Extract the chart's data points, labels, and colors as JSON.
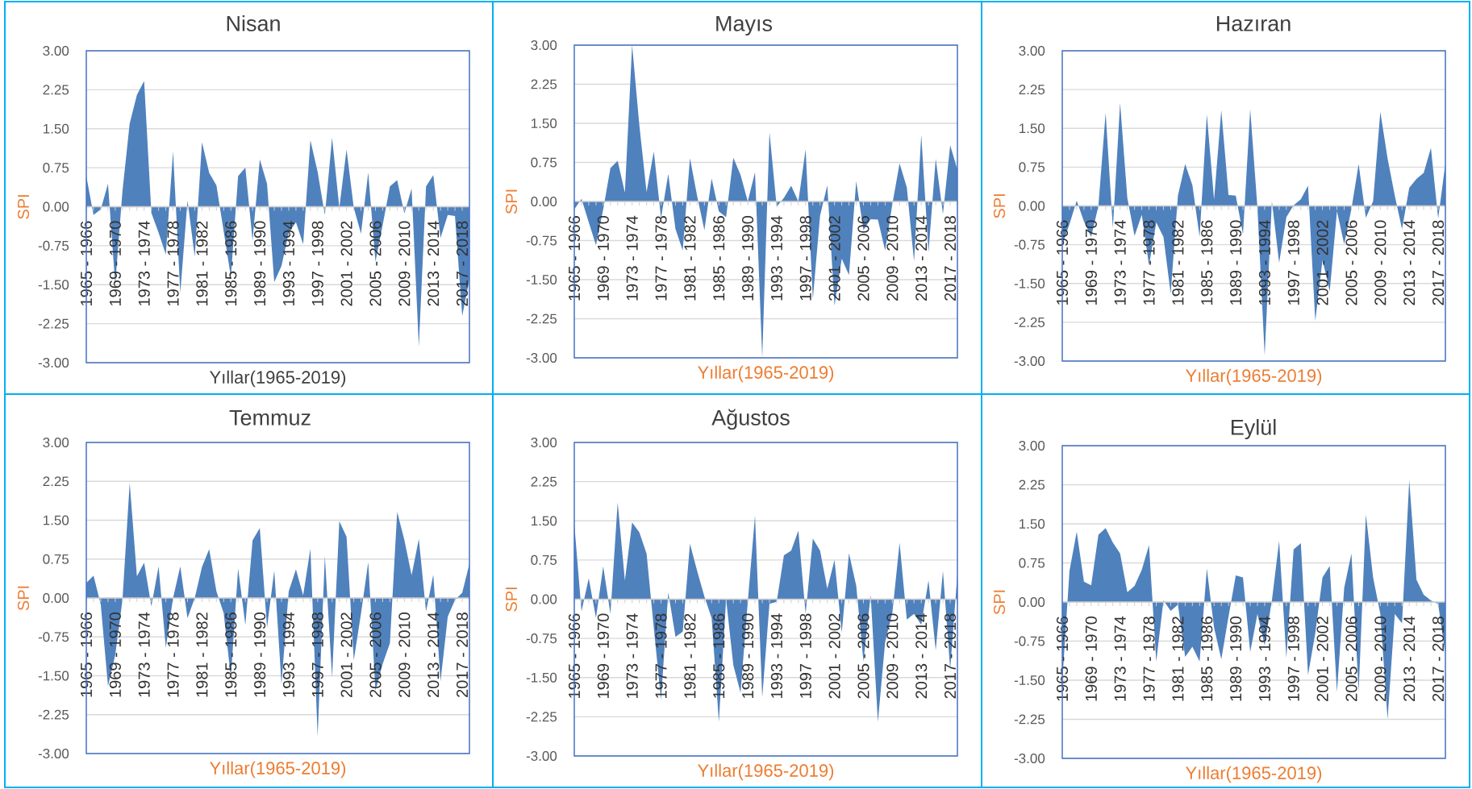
{
  "chart_data": [
    {
      "type": "area",
      "title": "Nisan",
      "xlabel": "Yıllar(1965-2019)",
      "ylabel": "SPI",
      "color": "#4f81bd",
      "ylim": [
        -3,
        3
      ],
      "yticks": [
        {
          "value": -3,
          "label": "-3.00"
        },
        -2.25,
        {
          "value": -1.5,
          "label": "-1.50"
        },
        -0.75,
        {
          "value": 0,
          "label": "0.00"
        },
        0.75,
        {
          "value": 1.5,
          "label": "1.50"
        },
        2.25,
        {
          "value": 3,
          "label": "3.00"
        }
      ],
      "grid": "y",
      "categories": [
        "1965 - 1966",
        null,
        null,
        null,
        "1969 - 1970",
        null,
        null,
        null,
        "1973 - 1974",
        null,
        null,
        null,
        "1977 - 1978",
        null,
        null,
        null,
        "1981 - 1982",
        null,
        null,
        null,
        "1985 - 1986",
        null,
        null,
        null,
        "1989 - 1990",
        null,
        null,
        null,
        "1993 - 1994",
        null,
        null,
        null,
        "1997 - 1998",
        null,
        null,
        null,
        "2001 - 2002",
        null,
        null,
        null,
        "2005 - 2006",
        null,
        null,
        null,
        "2009 - 2010",
        null,
        null,
        null,
        "2013 - 2014",
        null,
        null,
        null,
        "2017 - 2018",
        null
      ],
      "values": [
        0.59,
        -0.16,
        -0.05,
        0.44,
        -1.5,
        0.3,
        1.6,
        2.15,
        2.42,
        -0.12,
        -0.5,
        -0.92,
        1.06,
        -1.66,
        0.12,
        -0.96,
        1.24,
        0.65,
        0.41,
        -0.47,
        -1.35,
        0.59,
        0.75,
        -0.65,
        0.91,
        0.44,
        -1.45,
        -1.14,
        -0.5,
        -0.3,
        -0.72,
        1.28,
        0.67,
        -0.16,
        1.33,
        -0.02,
        1.1,
        -0.02,
        -0.52,
        0.66,
        -1.06,
        -0.35,
        0.39,
        0.51,
        -0.13,
        0.35,
        -2.69,
        0.39,
        0.61,
        -0.6,
        -0.16,
        -0.18,
        -2.1,
        -1.4
      ]
    },
    {
      "type": "area",
      "title": "Mayıs",
      "xlabel": "Yıllar(1965-2019)",
      "ylabel": "SPI",
      "color": "#4f81bd",
      "ylim": [
        -3,
        3
      ],
      "yticks": [
        {
          "value": -3,
          "label": "-3.00"
        },
        -2.25,
        {
          "value": -1.5,
          "label": "-1.50"
        },
        -0.75,
        {
          "value": 0,
          "label": "0.00"
        },
        0.75,
        {
          "value": 1.5,
          "label": "1.50"
        },
        2.25,
        {
          "value": 3,
          "label": "3.00"
        }
      ],
      "grid": "y",
      "categories": [
        "1965 - 1966",
        null,
        null,
        null,
        "1969 - 1970",
        null,
        null,
        null,
        "1973 - 1974",
        null,
        null,
        null,
        "1977 - 1978",
        null,
        null,
        null,
        "1981 - 1982",
        null,
        null,
        null,
        "1985 - 1986",
        null,
        null,
        null,
        "1989 - 1990",
        null,
        null,
        null,
        "1993 - 1994",
        null,
        null,
        null,
        "1997 - 1998",
        null,
        null,
        null,
        "2001 - 2002",
        null,
        null,
        null,
        "2005 - 2006",
        null,
        null,
        null,
        "2009 - 2010",
        null,
        null,
        null,
        "2013 - 2014",
        null,
        null,
        null,
        "2017 - 2018",
        null
      ],
      "values": [
        -0.15,
        0.05,
        -0.4,
        -0.84,
        -0.15,
        0.64,
        0.78,
        0.17,
        3.0,
        1.46,
        0.18,
        0.96,
        -0.32,
        0.53,
        -0.53,
        -0.94,
        0.83,
        0.1,
        -0.55,
        0.44,
        -0.19,
        -0.3,
        0.84,
        0.51,
        0.0,
        0.56,
        -3.0,
        1.33,
        -0.1,
        0.07,
        0.3,
        0.0,
        1.0,
        -1.87,
        -0.27,
        0.31,
        -2.0,
        -1.1,
        -1.41,
        0.39,
        -0.55,
        -0.34,
        -0.35,
        -0.94,
        -0.05,
        0.73,
        0.27,
        -1.15,
        1.28,
        -0.97,
        0.82,
        -0.24,
        1.08,
        0.61
      ]
    },
    {
      "type": "area",
      "title": "Hazıran",
      "xlabel": "Yıllar(1965-2019)",
      "ylabel": "SPI",
      "color": "#4f81bd",
      "ylim": [
        -3,
        3
      ],
      "yticks": [
        {
          "value": -3,
          "label": "-3.00"
        },
        -2.25,
        {
          "value": -1.5,
          "label": "-1.50"
        },
        -0.75,
        {
          "value": 0,
          "label": "0.00"
        },
        0.75,
        {
          "value": 1.5,
          "label": "1.50"
        },
        2.25,
        {
          "value": 3,
          "label": "3.00"
        }
      ],
      "grid": "y",
      "categories": [
        "1965 - 1966",
        null,
        null,
        null,
        "1969 - 1970",
        null,
        null,
        null,
        "1973 - 1974",
        null,
        null,
        null,
        "1977 - 1978",
        null,
        null,
        null,
        "1981 - 1982",
        null,
        null,
        null,
        "1985 - 1986",
        null,
        null,
        null,
        "1989 - 1990",
        null,
        null,
        null,
        "1993 - 1994",
        null,
        null,
        null,
        "1997 - 1998",
        null,
        null,
        null,
        "2001 - 2002",
        null,
        null,
        null,
        "2005 - 2006",
        null,
        null,
        null,
        "2009 - 2010",
        null,
        null,
        null,
        "2013 - 2014",
        null,
        null,
        null,
        "2017 - 2018",
        null
      ],
      "values": [
        -0.75,
        -0.35,
        0.1,
        -0.3,
        -0.6,
        0.0,
        1.8,
        -0.43,
        1.99,
        0.15,
        -0.58,
        -0.17,
        -1.15,
        -0.32,
        -0.6,
        -1.7,
        0.2,
        0.81,
        0.4,
        -0.6,
        1.77,
        0.12,
        1.85,
        0.21,
        0.2,
        -0.55,
        1.87,
        -0.04,
        -2.89,
        0.09,
        -1.1,
        -0.22,
        0.01,
        0.13,
        0.39,
        -2.22,
        -1.05,
        -1.65,
        -0.1,
        -0.74,
        -0.06,
        0.81,
        -0.23,
        0.09,
        1.82,
        0.92,
        0.2,
        -0.45,
        0.35,
        0.52,
        0.64,
        1.12,
        -0.24,
        0.82
      ]
    },
    {
      "type": "area",
      "title": "Temmuz",
      "xlabel": "Yıllar(1965-2019)",
      "ylabel": "SPI",
      "color": "#4f81bd",
      "ylim": [
        -3,
        3
      ],
      "yticks": [
        {
          "value": -3,
          "label": "-3.00"
        },
        -2.25,
        {
          "value": -1.5,
          "label": "-1.50"
        },
        -0.75,
        {
          "value": 0,
          "label": "0.00"
        },
        0.75,
        {
          "value": 1.5,
          "label": "1.50"
        },
        2.25,
        {
          "value": 3,
          "label": "3.00"
        }
      ],
      "grid": "y",
      "categories": [
        "1965 - 1966",
        null,
        null,
        null,
        "1969 - 1970",
        null,
        null,
        null,
        "1973 - 1974",
        null,
        null,
        null,
        "1977 - 1978",
        null,
        null,
        null,
        "1981 - 1982",
        null,
        null,
        null,
        "1985 - 1986",
        null,
        null,
        null,
        "1989 - 1990",
        null,
        null,
        null,
        "1993 - 1994",
        null,
        null,
        null,
        "1997 - 1998",
        null,
        null,
        null,
        "2001 - 2002",
        null,
        null,
        null,
        "2005 - 2006",
        null,
        null,
        null,
        "2009 - 2010",
        null,
        null,
        null,
        "2013 - 2014",
        null,
        null,
        null,
        "2017 - 2018",
        null
      ],
      "values": [
        0.29,
        0.43,
        -0.13,
        -1.7,
        -1.1,
        -0.04,
        2.22,
        0.42,
        0.68,
        -0.16,
        0.61,
        -0.96,
        0.0,
        0.61,
        -0.39,
        0.0,
        0.6,
        0.94,
        0.13,
        -0.29,
        -1.53,
        0.57,
        -0.52,
        1.11,
        1.35,
        -0.57,
        0.53,
        -1.66,
        0.13,
        0.55,
        0.05,
        0.95,
        -2.67,
        0.81,
        -1.53,
        1.48,
        1.18,
        -1.2,
        -0.3,
        0.69,
        -1.79,
        -1.27,
        -0.87,
        1.66,
        1.12,
        0.44,
        1.14,
        -0.26,
        0.45,
        -1.61,
        -0.36,
        -0.04,
        0.1,
        0.66
      ]
    },
    {
      "type": "area",
      "title": "Ağustos",
      "xlabel": "Yıllar(1965-2019)",
      "ylabel": "SPI",
      "color": "#4f81bd",
      "ylim": [
        -3,
        3
      ],
      "yticks": [
        {
          "value": -3,
          "label": "-3.00"
        },
        -2.25,
        {
          "value": -1.5,
          "label": "-1.50"
        },
        -0.75,
        {
          "value": 0,
          "label": "0.00"
        },
        0.75,
        {
          "value": 1.5,
          "label": "1.50"
        },
        2.25,
        {
          "value": 3,
          "label": "3.00"
        }
      ],
      "grid": "y",
      "categories": [
        "1965 - 1966",
        null,
        null,
        null,
        "1969 - 1970",
        null,
        null,
        null,
        "1973 - 1974",
        null,
        null,
        null,
        "1977 - 1978",
        null,
        null,
        null,
        "1981 - 1982",
        null,
        null,
        null,
        "1985 - 1986",
        null,
        null,
        null,
        "1989 - 1990",
        null,
        null,
        null,
        "1993 - 1994",
        null,
        null,
        null,
        "1997 - 1998",
        null,
        null,
        null,
        "2001 - 2002",
        null,
        null,
        null,
        "2005 - 2006",
        null,
        null,
        null,
        "2009 - 2010",
        null,
        null,
        null,
        "2013 - 2014",
        null,
        null,
        null,
        "2017 - 2018",
        null
      ],
      "values": [
        1.44,
        -0.23,
        0.4,
        -0.36,
        0.63,
        -0.28,
        1.85,
        0.36,
        1.47,
        1.28,
        0.87,
        -0.55,
        -1.93,
        0.13,
        -0.72,
        -0.62,
        1.06,
        0.54,
        0.05,
        -0.36,
        -2.35,
        0.0,
        -1.26,
        -1.79,
        -0.05,
        1.6,
        -1.88,
        -0.09,
        -0.05,
        0.84,
        0.93,
        1.31,
        -0.28,
        1.16,
        0.93,
        0.2,
        0.75,
        -0.64,
        0.88,
        0.26,
        -1.19,
        0.08,
        -2.35,
        -0.82,
        -0.26,
        1.08,
        -0.39,
        -0.28,
        -0.49,
        0.36,
        -0.98,
        0.54,
        -1.34,
        0.49
      ]
    },
    {
      "type": "area",
      "title": "Eylül",
      "xlabel": "Yıllar(1965-2019)",
      "ylabel": "SPI",
      "color": "#4f81bd",
      "ylim": [
        -3,
        3
      ],
      "yticks": [
        {
          "value": -3,
          "label": "-3.00"
        },
        -2.25,
        {
          "value": -1.5,
          "label": "-1.50"
        },
        -0.75,
        {
          "value": 0,
          "label": "0.00"
        },
        0.75,
        {
          "value": 1.5,
          "label": "1.50"
        },
        2.25,
        {
          "value": 3,
          "label": "3.00"
        }
      ],
      "grid": "y",
      "categories": [
        "1965 - 1966",
        null,
        null,
        null,
        "1969 - 1970",
        null,
        null,
        null,
        "1973 - 1974",
        null,
        null,
        null,
        "1977 - 1978",
        null,
        null,
        null,
        "1981 - 1982",
        null,
        null,
        null,
        "1985 - 1986",
        null,
        null,
        null,
        "1989 - 1990",
        null,
        null,
        null,
        "1993 - 1994",
        null,
        null,
        null,
        "1997 - 1998",
        null,
        null,
        null,
        "2001 - 2002",
        null,
        null,
        null,
        "2005 - 2006",
        null,
        null,
        null,
        "2009 - 2010",
        null,
        null,
        null,
        "2013 - 2014",
        null,
        null,
        null,
        "2017 - 2018",
        null
      ],
      "values": [
        -1.53,
        0.6,
        1.35,
        0.39,
        0.32,
        1.29,
        1.42,
        1.14,
        0.93,
        0.19,
        0.31,
        0.62,
        1.09,
        -1.14,
        0.03,
        -0.17,
        -0.05,
        -1.05,
        -0.86,
        -1.14,
        0.64,
        -0.49,
        -1.1,
        -0.28,
        0.51,
        0.47,
        -0.96,
        -0.23,
        -0.83,
        0.03,
        1.17,
        -1.07,
        1.01,
        1.13,
        -1.4,
        -0.6,
        0.47,
        0.69,
        -1.73,
        0.27,
        0.93,
        -1.73,
        1.68,
        0.47,
        -0.23,
        -2.25,
        -0.23,
        -0.41,
        2.34,
        0.43,
        0.14,
        0.03,
        -0.04,
        -1.01
      ]
    }
  ]
}
